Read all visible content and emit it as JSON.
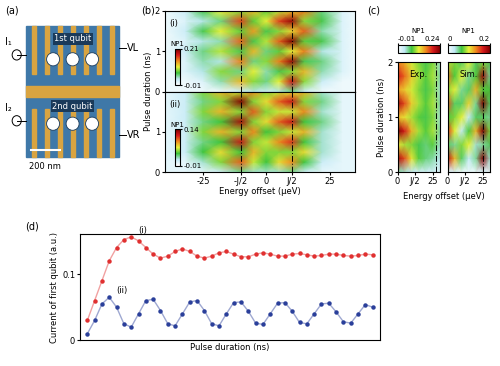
{
  "device": {
    "panel_label": "(a)",
    "current_1": "I₁",
    "current_2": "I₂",
    "qubit_1": "1st qubit",
    "qubit_2": "2nd qubit",
    "voltage_1": "VL",
    "voltage_2": "VR",
    "scale_bar": "200 nm"
  },
  "chart_data": [
    {
      "type": "heatmap",
      "panel_label": "(b)",
      "subplot_label": "(i)",
      "y_label": "Pulse duration (ns)",
      "x": [
        -40,
        -32,
        -25,
        -18,
        -10,
        -5,
        0,
        5,
        10,
        15,
        22,
        30,
        35
      ],
      "y": [
        0,
        0.25,
        0.5,
        0.75,
        1.0,
        1.25,
        1.5,
        1.75,
        2.0
      ],
      "cells": [
        [
          0,
          0,
          0,
          0,
          0.02,
          0.03,
          0.02,
          0.03,
          0.05,
          0.02,
          0,
          0,
          0
        ],
        [
          0,
          0,
          0.01,
          0.04,
          0.12,
          0.08,
          0.05,
          0.1,
          0.18,
          0.08,
          0.02,
          0,
          0
        ],
        [
          0,
          0.01,
          0.03,
          0.08,
          0.05,
          0.1,
          0.04,
          0.06,
          0.08,
          0.12,
          0.04,
          0.01,
          0
        ],
        [
          0,
          0.01,
          0.04,
          0.03,
          0.14,
          0.05,
          0.08,
          0.14,
          0.2,
          0.06,
          0.05,
          0.01,
          0
        ],
        [
          0,
          0.02,
          0.05,
          0.09,
          0.06,
          0.12,
          0.05,
          0.07,
          0.1,
          0.14,
          0.03,
          0.01,
          0
        ],
        [
          0,
          0.01,
          0.03,
          0.04,
          0.15,
          0.06,
          0.09,
          0.15,
          0.21,
          0.07,
          0.06,
          0.01,
          0
        ],
        [
          0,
          0.02,
          0.06,
          0.1,
          0.07,
          0.13,
          0.06,
          0.08,
          0.11,
          0.15,
          0.04,
          0.01,
          0
        ],
        [
          0,
          0.01,
          0.03,
          0.05,
          0.16,
          0.07,
          0.1,
          0.16,
          0.2,
          0.08,
          0.06,
          0.01,
          0
        ],
        [
          0,
          0.02,
          0.06,
          0.1,
          0.08,
          0.12,
          0.07,
          0.09,
          0.12,
          0.14,
          0.05,
          0.01,
          0
        ]
      ],
      "xlim": [
        -40,
        35
      ],
      "ylim": [
        0,
        2
      ],
      "yticks": [
        0,
        1,
        2
      ],
      "vlines": [
        -10,
        10
      ],
      "colorbar": {
        "label": "NP1",
        "range": [
          -0.01,
          0.21
        ],
        "ticks": [
          -0.01,
          0.21
        ]
      }
    },
    {
      "type": "heatmap",
      "subplot_label": "(ii)",
      "x_label": "Energy offset (μeV)",
      "x": [
        -40,
        -32,
        -25,
        -18,
        -10,
        -5,
        0,
        5,
        10,
        15,
        22,
        30,
        35
      ],
      "y": [
        0,
        0.25,
        0.5,
        0.75,
        1.0,
        1.25,
        1.5,
        1.75,
        2.0
      ],
      "cells": [
        [
          0,
          0,
          0,
          0.01,
          0.03,
          0.02,
          0.02,
          0.02,
          0.03,
          0.01,
          0,
          0,
          0
        ],
        [
          0,
          0,
          0.02,
          0.05,
          0.1,
          0.06,
          0.04,
          0.07,
          0.09,
          0.04,
          0.01,
          0,
          0
        ],
        [
          0,
          0.01,
          0.04,
          0.07,
          0.04,
          0.08,
          0.05,
          0.05,
          0.05,
          0.07,
          0.02,
          0,
          0
        ],
        [
          0,
          0.01,
          0.03,
          0.04,
          0.12,
          0.05,
          0.06,
          0.09,
          0.11,
          0.04,
          0.02,
          0,
          0
        ],
        [
          0,
          0.01,
          0.05,
          0.08,
          0.05,
          0.09,
          0.04,
          0.05,
          0.06,
          0.08,
          0.02,
          0,
          0
        ],
        [
          0,
          0.01,
          0.03,
          0.04,
          0.13,
          0.05,
          0.07,
          0.1,
          0.12,
          0.04,
          0.03,
          0,
          0
        ],
        [
          0,
          0.01,
          0.05,
          0.08,
          0.05,
          0.1,
          0.05,
          0.06,
          0.06,
          0.09,
          0.02,
          0,
          0
        ],
        [
          0,
          0.01,
          0.03,
          0.05,
          0.14,
          0.05,
          0.07,
          0.1,
          0.12,
          0.05,
          0.03,
          0,
          0
        ],
        [
          0,
          0.01,
          0.05,
          0.08,
          0.06,
          0.09,
          0.05,
          0.06,
          0.07,
          0.08,
          0.02,
          0,
          0
        ]
      ],
      "xlim": [
        -40,
        35
      ],
      "ylim": [
        0,
        2
      ],
      "xticks": [
        -25,
        {
          "value": -10,
          "label": "-J/2"
        },
        0,
        {
          "value": 10,
          "label": "J/2"
        },
        25
      ],
      "yticks": [
        0,
        1
      ],
      "vlines": [
        -10,
        10
      ],
      "colorbar": {
        "label": "NP1",
        "range": [
          -0.01,
          0.14
        ],
        "ticks": [
          -0.01,
          0.14
        ]
      }
    },
    {
      "type": "heatmap",
      "panel_label": "(c)",
      "title": "Exp.",
      "y_label": "Pulse duration (ns)",
      "x_label": "Energy offset (μeV)",
      "x": [
        0,
        5,
        10,
        15,
        20,
        25,
        30
      ],
      "y": [
        0,
        0.25,
        0.5,
        0.75,
        1.0,
        1.25,
        1.5,
        1.75,
        2.0
      ],
      "cells": [
        [
          0.05,
          0.04,
          0.03,
          0.02,
          0.02,
          0.02,
          0.01
        ],
        [
          0.22,
          0.18,
          0.12,
          0.08,
          0.06,
          0.05,
          0.03
        ],
        [
          0.12,
          0.1,
          0.09,
          0.07,
          0.06,
          0.08,
          0.04
        ],
        [
          0.24,
          0.2,
          0.14,
          0.1,
          0.08,
          0.1,
          0.05
        ],
        [
          0.14,
          0.12,
          0.1,
          0.08,
          0.07,
          0.09,
          0.04
        ],
        [
          0.22,
          0.18,
          0.13,
          0.1,
          0.08,
          0.1,
          0.05
        ],
        [
          0.15,
          0.13,
          0.11,
          0.09,
          0.07,
          0.09,
          0.04
        ],
        [
          0.2,
          0.17,
          0.13,
          0.1,
          0.08,
          0.1,
          0.05
        ],
        [
          0.16,
          0.14,
          0.11,
          0.09,
          0.07,
          0.09,
          0.04
        ]
      ],
      "xlim": [
        0,
        30
      ],
      "ylim": [
        0,
        2
      ],
      "xticks": [
        0,
        {
          "value": 12,
          "label": "J/2"
        },
        25
      ],
      "yticks": [
        0,
        1,
        2
      ],
      "vlines": [
        27
      ],
      "colorbar": {
        "label": "NP1",
        "range": [
          -0.01,
          0.24
        ],
        "ticks": [
          -0.01,
          0.24
        ]
      }
    },
    {
      "type": "heatmap",
      "title": "Sim.",
      "x": [
        0,
        5,
        10,
        15,
        20,
        25,
        30
      ],
      "y": [
        0,
        0.25,
        0.5,
        0.75,
        1.0,
        1.25,
        1.5,
        1.75,
        2.0
      ],
      "cells": [
        [
          0.02,
          0.02,
          0.01,
          0.01,
          0.01,
          0.02,
          0.01
        ],
        [
          0.18,
          0.12,
          0.06,
          0.03,
          0.05,
          0.2,
          0.04
        ],
        [
          0.06,
          0.05,
          0.08,
          0.1,
          0.04,
          0.05,
          0.06
        ],
        [
          0.16,
          0.1,
          0.03,
          0.07,
          0.12,
          0.2,
          0.08
        ],
        [
          0.07,
          0.08,
          0.1,
          0.03,
          0.06,
          0.06,
          0.05
        ],
        [
          0.15,
          0.06,
          0.06,
          0.11,
          0.05,
          0.2,
          0.06
        ],
        [
          0.08,
          0.1,
          0.05,
          0.06,
          0.12,
          0.07,
          0.07
        ],
        [
          0.14,
          0.07,
          0.1,
          0.05,
          0.07,
          0.19,
          0.05
        ],
        [
          0.09,
          0.08,
          0.06,
          0.1,
          0.06,
          0.08,
          0.06
        ]
      ],
      "xlim": [
        0,
        30
      ],
      "ylim": [
        0,
        2
      ],
      "xticks": [
        0,
        {
          "value": 12,
          "label": "J/2"
        },
        25
      ],
      "vlines": [
        25
      ],
      "colorbar": {
        "label": "NP1",
        "range": [
          0,
          0.2
        ],
        "ticks": [
          0,
          0.2
        ]
      }
    },
    {
      "type": "scatter",
      "panel_label": "(d)",
      "x_label": "Pulse duration (ns)",
      "y_label": "Current of first qubit (a.u.)",
      "x": [
        0.05,
        0.1,
        0.15,
        0.2,
        0.25,
        0.3,
        0.35,
        0.4,
        0.45,
        0.5,
        0.55,
        0.6,
        0.65,
        0.7,
        0.75,
        0.8,
        0.85,
        0.9,
        0.95,
        1.0,
        1.05,
        1.1,
        1.15,
        1.2,
        1.25,
        1.3,
        1.35,
        1.4,
        1.45,
        1.5,
        1.55,
        1.6,
        1.65,
        1.7,
        1.75,
        1.8,
        1.85,
        1.9,
        1.95,
        2.0
      ],
      "series": [
        {
          "name": "(i)",
          "color": "#e03030",
          "marker": "o",
          "values": [
            0.03,
            0.06,
            0.09,
            0.12,
            0.14,
            0.152,
            0.156,
            0.15,
            0.14,
            0.13,
            0.124,
            0.127,
            0.134,
            0.138,
            0.134,
            0.127,
            0.124,
            0.127,
            0.132,
            0.134,
            0.13,
            0.126,
            0.126,
            0.13,
            0.132,
            0.13,
            0.127,
            0.127,
            0.13,
            0.131,
            0.129,
            0.127,
            0.128,
            0.13,
            0.13,
            0.128,
            0.127,
            0.128,
            0.13,
            0.129
          ]
        },
        {
          "name": "(ii)",
          "color": "#2a3f9a",
          "marker": "o",
          "values": [
            0.01,
            0.03,
            0.055,
            0.065,
            0.05,
            0.025,
            0.02,
            0.04,
            0.06,
            0.062,
            0.045,
            0.025,
            0.022,
            0.04,
            0.058,
            0.06,
            0.045,
            0.025,
            0.022,
            0.04,
            0.057,
            0.058,
            0.044,
            0.026,
            0.024,
            0.04,
            0.056,
            0.057,
            0.044,
            0.027,
            0.025,
            0.04,
            0.055,
            0.056,
            0.043,
            0.028,
            0.026,
            0.04,
            0.054,
            0.05
          ]
        }
      ],
      "xlim": [
        0,
        2.05
      ],
      "ylim": [
        0,
        0.16
      ],
      "yticks": [
        0,
        0.1
      ],
      "tick_labels": "y"
    }
  ]
}
